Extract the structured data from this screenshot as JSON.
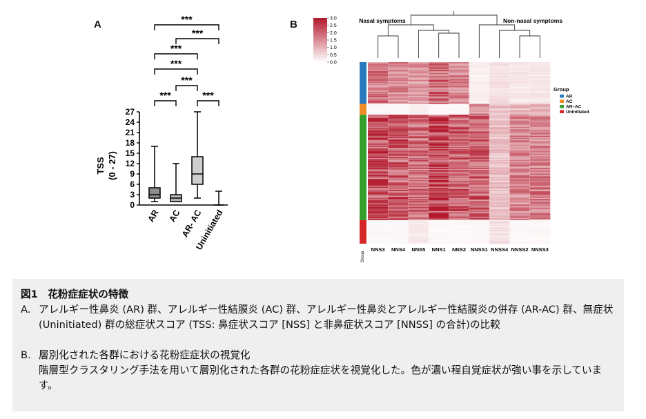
{
  "panels": {
    "a": "A",
    "b": "B"
  },
  "chart_data": [
    {
      "type": "box",
      "ylabel_line1": "TSS",
      "ylabel_line2": "(0 - 27)",
      "ylim": [
        0,
        27
      ],
      "yticks": [
        "0",
        "3",
        "6",
        "9",
        "12",
        "15",
        "18",
        "21",
        "24",
        "27"
      ],
      "categories": [
        "AR",
        "AC",
        "AR- AC",
        "Uninitiated"
      ],
      "boxes": [
        {
          "label": "AR",
          "min": 1,
          "q1": 2,
          "median": 3,
          "q3": 5,
          "max": 17,
          "color": "#8c8c8c"
        },
        {
          "label": "AC",
          "min": 1,
          "q1": 1,
          "median": 2,
          "q3": 3,
          "max": 12,
          "color": "#b5b5b5"
        },
        {
          "label": "AR- AC",
          "min": 2,
          "q1": 6,
          "median": 9,
          "q3": 14,
          "max": 27,
          "color": "#cfcfcf"
        },
        {
          "label": "Uninitiated",
          "min": 0,
          "q1": 0,
          "median": 0,
          "q3": 0,
          "max": 4,
          "color": "#dcdcdc"
        }
      ],
      "significance": [
        {
          "from": 0,
          "to": 1,
          "label": "***",
          "level": 0
        },
        {
          "from": 2,
          "to": 3,
          "label": "***",
          "level": 0
        },
        {
          "from": 1,
          "to": 2,
          "label": "***",
          "level": 1
        },
        {
          "from": 0,
          "to": 2,
          "label": "***",
          "level": 2
        },
        {
          "from": 0,
          "to": 2,
          "label": "***",
          "level": 3
        },
        {
          "from": 1,
          "to": 3,
          "label": "***",
          "level": 4
        },
        {
          "from": 0,
          "to": 3,
          "label": "***",
          "level": 5
        }
      ]
    },
    {
      "type": "heatmap",
      "columns": [
        "NNS3",
        "NNS4",
        "NNS5",
        "NNS1",
        "NNS2",
        "NNSS1",
        "NNSS4",
        "NNSS2",
        "NNSS3"
      ],
      "cluster_labels": [
        "Nasal symptoms",
        "Non-nasal symptoms"
      ],
      "group_axis_label": "Group",
      "legend_title": "Group",
      "groups": [
        {
          "name": "AR",
          "color": "#2a7bbd",
          "fraction": 0.23
        },
        {
          "name": "AC",
          "color": "#f08c25",
          "fraction": 0.06
        },
        {
          "name": "AR–AC",
          "color": "#33a02c",
          "fraction": 0.58
        },
        {
          "name": "Uninitiated",
          "color": "#d62728",
          "fraction": 0.13
        }
      ],
      "group_column_means": [
        [
          1.7,
          1.5,
          1.3,
          1.9,
          1.5,
          0.2,
          0.4,
          0.3,
          0.3
        ],
        [
          0.1,
          0.1,
          0.2,
          0.1,
          0.1,
          1.6,
          0.8,
          0.9,
          1.0
        ],
        [
          2.3,
          2.1,
          1.9,
          2.4,
          2.0,
          2.0,
          0.8,
          1.6,
          1.7
        ],
        [
          0.1,
          0.1,
          0.3,
          0.1,
          0.1,
          0.1,
          0.4,
          0.1,
          0.1
        ]
      ],
      "colorscale": {
        "min": 0,
        "max": 3,
        "low_color": "#ffffff",
        "high_color": "#b2182b"
      },
      "colorbar_ticks": [
        "3.0",
        "2.5",
        "2.0",
        "1.5",
        "1.0",
        "0.5",
        "0.0"
      ]
    }
  ],
  "caption": {
    "title": "図1　花粉症症状の特徴",
    "a_label": "A.",
    "a_text": "アレルギー性鼻炎 (AR) 群、アレルギー性結膜炎 (AC) 群、アレルギー性鼻炎とアレルギー性結膜炎の併存 (AR-AC) 群、無症状 (Uninitiated) 群の総症状スコア (TSS: 鼻症状スコア [NSS] と非鼻症状スコア [NNSS] の合計)の比較",
    "b_label": "B.",
    "b_text1": "層別化された各群における花粉症症状の視覚化",
    "b_text2": "階層型クラスタリング手法を用いて層別化された各群の花粉症症状を視覚化した。色が濃い程自覚症状が強い事を示しています。"
  }
}
